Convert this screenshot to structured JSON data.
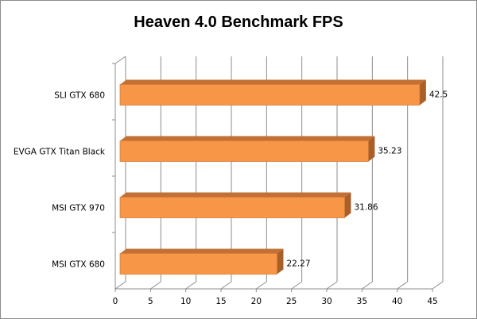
{
  "chart_data": {
    "type": "bar",
    "orientation": "horizontal",
    "style": "3d",
    "title": "Heaven 4.0 Benchmark FPS",
    "categories": [
      "SLI GTX 680",
      "EVGA GTX Titan Black",
      "MSI GTX 970",
      "MSI GTX 680"
    ],
    "values": [
      42.5,
      35.23,
      31.86,
      22.27
    ],
    "data_labels": [
      "42.5",
      "35.23",
      "31.86",
      "22.27"
    ],
    "xlabel": "",
    "ylabel": "",
    "xlim": [
      0,
      45
    ],
    "xticks": [
      "0",
      "5",
      "10",
      "15",
      "20",
      "25",
      "30",
      "35",
      "40",
      "45"
    ],
    "grid": true,
    "legend": "none",
    "colors": {
      "bar_front": "#f79646",
      "bar_top": "#c27033",
      "bar_side": "#a85f28",
      "grid": "#8c8c8c"
    }
  }
}
